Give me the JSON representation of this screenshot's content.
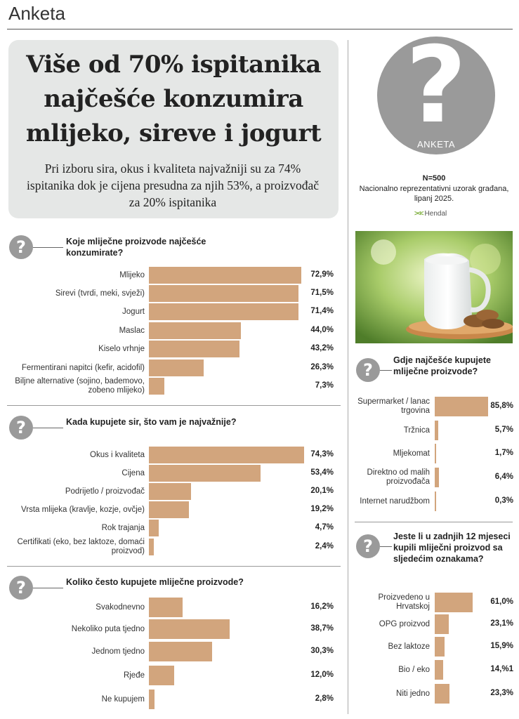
{
  "page": {
    "section_title": "Anketa",
    "headline": "Više od 70% ispitanika najčešće konzumira mlijeko, sireve i jogurt",
    "subhead": "Pri izboru sira, okus i kvaliteta najvažniji su za 74% ispitanika dok je cijena presudna za njih 53%, a proizvođač za 20% ispitanika",
    "badge_label": "ANKETA",
    "badge_mark": "?",
    "sample_n": "N=500",
    "sample_desc": "Nacionalno reprezentativni uzorak građana, lipanj 2025.",
    "logo_text": "Hendal",
    "accent_color": "#d2a57d",
    "icon_color": "#9a9a9a"
  },
  "chart_data": [
    {
      "type": "bar",
      "title": "Koje mliječne proizvode najčešće konzumirate?",
      "categories": [
        "Mlijeko",
        "Sirevi (tvrdi, meki, svježi)",
        "Jogurt",
        "Maslac",
        "Kiselo vrhnje",
        "Fermentirani napitci (kefir, acidofil)",
        "Biljne alternative (sojino, bademovo, zobeno mlijeko)"
      ],
      "values": [
        72.9,
        71.5,
        71.4,
        44.0,
        43.2,
        26.3,
        7.3
      ],
      "value_labels": [
        "72,9%",
        "71,5%",
        "71,4%",
        "44,0%",
        "43,2%",
        "26,3%",
        "7,3%"
      ],
      "xlim": [
        0,
        100
      ]
    },
    {
      "type": "bar",
      "title": "Kada kupujete sir, što vam je najvažnije?",
      "categories": [
        "Okus i kvaliteta",
        "Cijena",
        "Podrijetlo / proizvođač",
        "Vrsta mlijeka (kravlje, kozje, ovčje)",
        "Rok trajanja",
        "Certifikati (eko, bez laktoze, domaći proizvod)"
      ],
      "values": [
        74.3,
        53.4,
        20.1,
        19.2,
        4.7,
        2.4
      ],
      "value_labels": [
        "74,3%",
        "53,4%",
        "20,1%",
        "19,2%",
        "4,7%",
        "2,4%"
      ],
      "xlim": [
        0,
        100
      ]
    },
    {
      "type": "bar",
      "title": "Koliko često kupujete mliječne proizvode?",
      "categories": [
        "Svakodnevno",
        "Nekoliko puta tjedno",
        "Jednom tjedno",
        "Rjeđe",
        "Ne kupujem"
      ],
      "values": [
        16.2,
        38.7,
        30.3,
        12.0,
        2.8
      ],
      "value_labels": [
        "16,2%",
        "38,7%",
        "30,3%",
        "12,0%",
        "2,8%"
      ],
      "xlim": [
        0,
        100
      ]
    },
    {
      "type": "bar",
      "title": "Gdje najčešće kupujete mliječne proizvode?",
      "categories": [
        "Supermarket / lanac trgovina",
        "Tržnica",
        "Mljekomat",
        "Direktno od malih proizvođača",
        "Internet narudžbom"
      ],
      "values": [
        85.8,
        5.7,
        1.7,
        6.4,
        0.3
      ],
      "value_labels": [
        "85,8%",
        "5,7%",
        "1,7%",
        "6,4%",
        "0,3%"
      ],
      "xlim": [
        0,
        100
      ]
    },
    {
      "type": "bar",
      "title": "Jeste li u zadnjih 12 mjeseci kupili mliječni proizvod sa sljedećim oznakama?",
      "categories": [
        "Proizvedeno u Hrvatskoj",
        "OPG proizvod",
        "Bez laktoze",
        "Bio / eko",
        "Niti jedno"
      ],
      "values": [
        61.0,
        23.1,
        15.9,
        14.1,
        23.3
      ],
      "value_labels": [
        "61,0%",
        "23,1%",
        "15,9%",
        "14,%1",
        "23,3%"
      ],
      "xlim": [
        0,
        100
      ]
    }
  ]
}
